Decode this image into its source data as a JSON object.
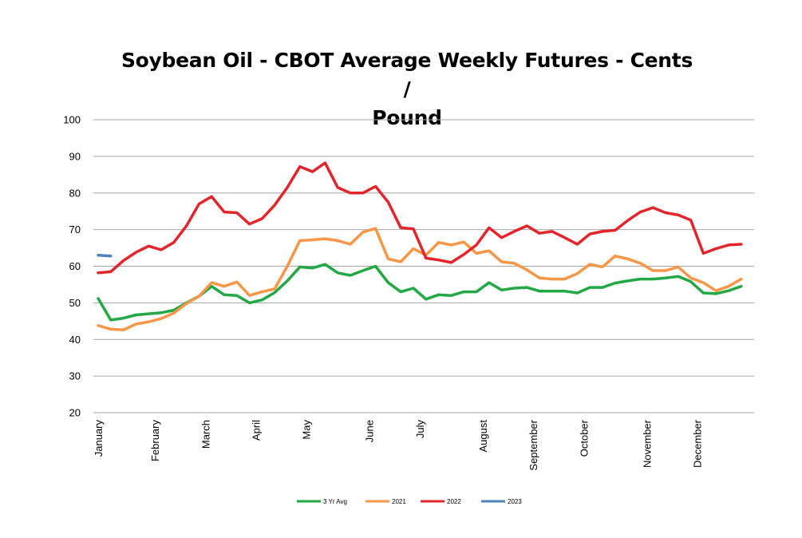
{
  "chart_data": {
    "type": "line",
    "title": "Soybean Oil - CBOT Average Weekly Futures - Cents / Pound",
    "title_lines": [
      "Soybean Oil - CBOT Average Weekly Futures - Cents /",
      "Pound"
    ],
    "ylim": [
      20,
      100
    ],
    "yticks": [
      20,
      30,
      40,
      50,
      60,
      70,
      80,
      90,
      100
    ],
    "grid": true,
    "legend_position": "bottom",
    "months": [
      "January",
      "February",
      "March",
      "April",
      "May",
      "June",
      "July",
      "August",
      "September",
      "October",
      "November",
      "December"
    ],
    "month_weeks": [
      1,
      5.5,
      9.5,
      13.5,
      17.5,
      22.5,
      26.5,
      31.5,
      35.5,
      39.5,
      44.5,
      48.5
    ],
    "series": [
      {
        "name": "3 Yr Avg",
        "color": "#22a845",
        "values": [
          51.2,
          45.3,
          45.8,
          46.7,
          47.0,
          47.3,
          48.0,
          50.0,
          51.8,
          54.5,
          52.2,
          52.0,
          50.0,
          50.8,
          52.8,
          56.0,
          59.8,
          59.5,
          60.5,
          58.2,
          57.5,
          58.8,
          60.0,
          55.5,
          53.0,
          54.0,
          51.0,
          52.2,
          52.0,
          53.0,
          53.0,
          55.5,
          53.5,
          54.0,
          54.2,
          53.2,
          53.2,
          53.2,
          52.7,
          54.2,
          54.2,
          55.4,
          56.0,
          56.5,
          56.5,
          56.8,
          57.2,
          55.8,
          52.7,
          52.5,
          53.3,
          54.5
        ]
      },
      {
        "name": "2021",
        "color": "#f79646",
        "values": [
          43.8,
          42.8,
          42.6,
          44.2,
          44.8,
          45.7,
          47.2,
          49.8,
          51.8,
          55.5,
          54.5,
          55.7,
          52.0,
          53.0,
          53.8,
          60.0,
          67.0,
          67.2,
          67.5,
          67.0,
          66.0,
          69.3,
          70.3,
          62.0,
          61.2,
          64.8,
          63.0,
          66.5,
          65.8,
          66.6,
          63.5,
          64.2,
          61.2,
          60.8,
          59.0,
          56.8,
          56.5,
          56.5,
          58.0,
          60.5,
          59.8,
          62.8,
          62.0,
          60.8,
          58.8,
          58.8,
          59.8,
          56.8,
          55.5,
          53.3,
          54.5,
          56.5
        ]
      },
      {
        "name": "2022",
        "color": "#e3242b",
        "values": [
          58.2,
          58.5,
          61.5,
          63.8,
          65.5,
          64.5,
          66.5,
          71.0,
          77.0,
          79.0,
          74.8,
          74.6,
          71.5,
          73.0,
          76.7,
          81.5,
          87.2,
          85.8,
          88.2,
          81.5,
          80.0,
          80.0,
          81.8,
          77.5,
          70.5,
          70.2,
          62.2,
          61.7,
          61.0,
          63.2,
          65.8,
          70.5,
          67.8,
          69.5,
          71.0,
          69.0,
          69.5,
          67.8,
          66.0,
          68.8,
          69.5,
          69.8,
          72.5,
          74.8,
          76.0,
          74.6,
          74.0,
          72.6,
          63.5,
          64.8,
          65.8,
          66.0
        ]
      },
      {
        "name": "2023",
        "color": "#4f81bd",
        "values": [
          63.0,
          62.8
        ]
      }
    ]
  }
}
